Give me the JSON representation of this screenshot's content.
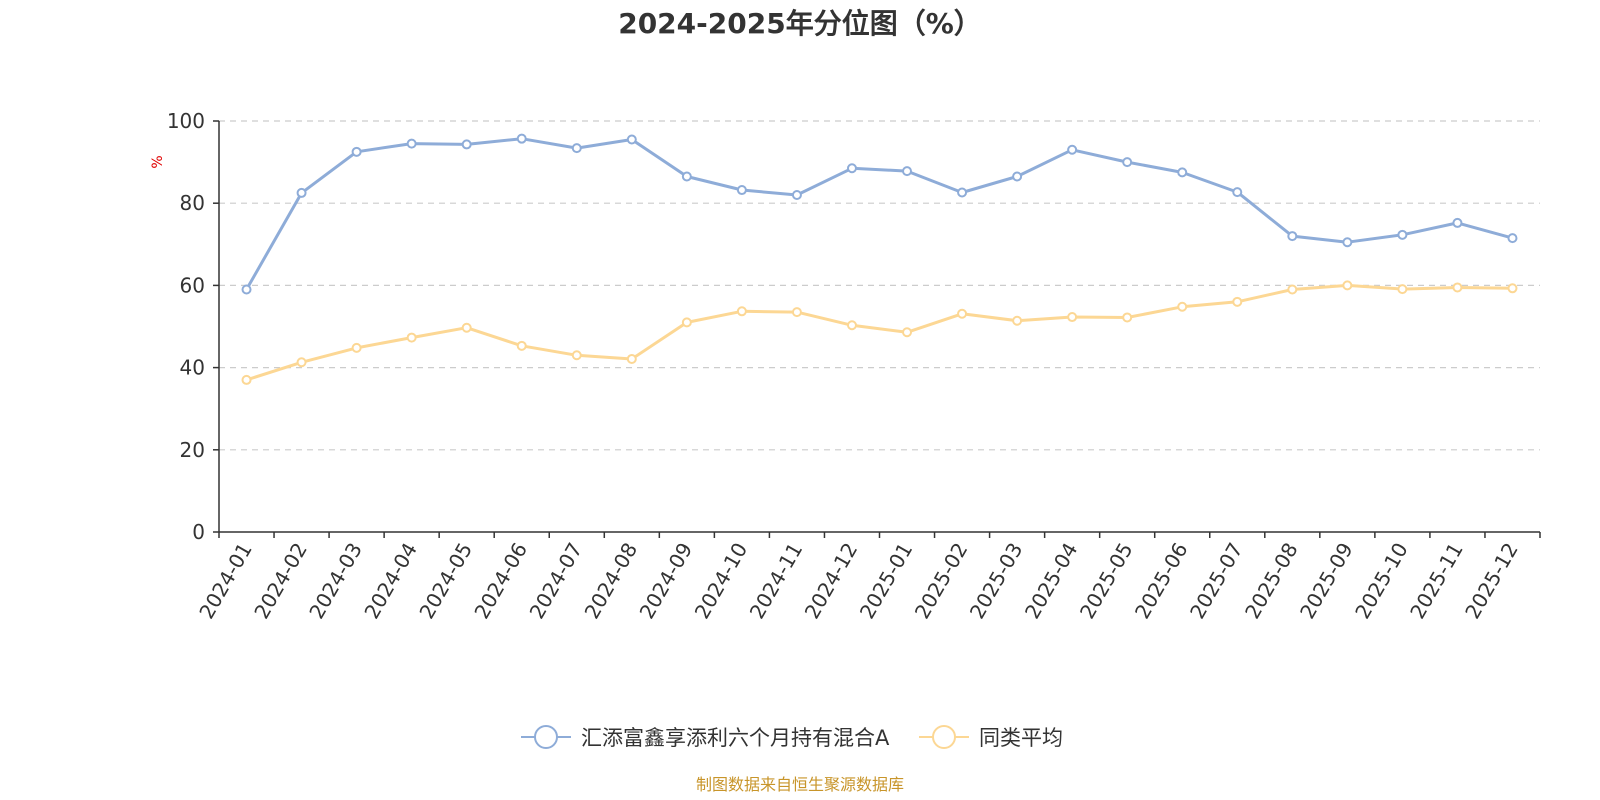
{
  "chart_data": {
    "type": "line",
    "title": "2024-2025年分位图（%）",
    "ylabel": "%",
    "ylim": [
      0,
      100
    ],
    "yticks": [
      0,
      20,
      40,
      60,
      80,
      100
    ],
    "grid": true,
    "legend_position": "bottom-center",
    "categories": [
      "2024-01",
      "2024-02",
      "2024-03",
      "2024-04",
      "2024-05",
      "2024-06",
      "2024-07",
      "2024-08",
      "2024-09",
      "2024-10",
      "2024-11",
      "2024-12",
      "2025-01",
      "2025-02",
      "2025-03",
      "2025-04",
      "2025-05",
      "2025-06",
      "2025-07",
      "2025-08",
      "2025-09",
      "2025-10",
      "2025-11",
      "2025-12"
    ],
    "series": [
      {
        "name": "汇添富鑫享添利六个月持有混合A",
        "color": "#8eacd8",
        "values": [
          59,
          82.5,
          92.5,
          94.5,
          94.3,
          95.7,
          93.4,
          95.5,
          86.5,
          83.2,
          82,
          88.5,
          87.8,
          82.6,
          86.5,
          93,
          90,
          87.5,
          82.7,
          72,
          70.5,
          72.3,
          75.2,
          71.5
        ]
      },
      {
        "name": "同类平均",
        "color": "#fcd794",
        "values": [
          37,
          41.3,
          44.8,
          47.3,
          49.7,
          45.3,
          43,
          42.1,
          51,
          53.7,
          53.5,
          50.3,
          48.6,
          53.1,
          51.4,
          52.3,
          52.2,
          54.8,
          56,
          59,
          60,
          59.1,
          59.5,
          59.3
        ]
      }
    ],
    "source": "制图数据来自恒生聚源数据库"
  }
}
